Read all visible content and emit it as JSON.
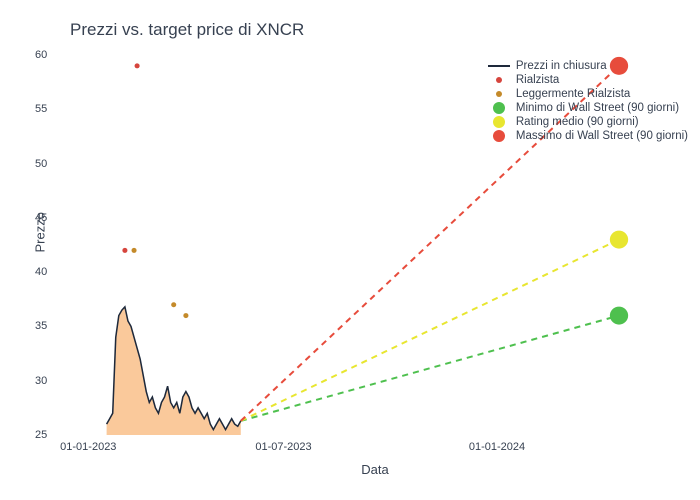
{
  "title": "Prezzi vs. target price di XNCR",
  "xlabel": "Data",
  "ylabel": "Prezzo",
  "background_color": "#ffffff",
  "title_fontsize": 17,
  "label_fontsize": 13,
  "tick_fontsize": 11,
  "text_color": "#374151",
  "ylim": [
    25,
    60
  ],
  "yticks": [
    25,
    30,
    35,
    40,
    45,
    50,
    55,
    60
  ],
  "xticks": [
    {
      "pos": 0.03,
      "label": "01-01-2023"
    },
    {
      "pos": 0.35,
      "label": "01-07-2023"
    },
    {
      "pos": 0.7,
      "label": "01-01-2024"
    }
  ],
  "series": {
    "close": {
      "label": "Prezzi in chiusura",
      "color": "#1e293b",
      "fill": "#f9c08a",
      "line_width": 1.5,
      "x": [
        0.06,
        0.065,
        0.07,
        0.075,
        0.08,
        0.085,
        0.09,
        0.095,
        0.1,
        0.105,
        0.11,
        0.115,
        0.12,
        0.125,
        0.13,
        0.135,
        0.14,
        0.145,
        0.15,
        0.155,
        0.16,
        0.165,
        0.17,
        0.175,
        0.18,
        0.185,
        0.19,
        0.195,
        0.2,
        0.205,
        0.21,
        0.215,
        0.22,
        0.225,
        0.23,
        0.235,
        0.24,
        0.245,
        0.25,
        0.255,
        0.26,
        0.265,
        0.27,
        0.275,
        0.28
      ],
      "y": [
        26.0,
        26.5,
        27.0,
        34.0,
        36.0,
        36.5,
        36.8,
        35.5,
        35.0,
        34.0,
        33.0,
        32.0,
        30.5,
        29.0,
        28.0,
        28.5,
        27.5,
        27.0,
        28.0,
        28.5,
        29.5,
        28.0,
        27.5,
        28.0,
        27.0,
        28.5,
        29.0,
        28.5,
        27.5,
        27.0,
        27.5,
        27.0,
        26.5,
        27.0,
        26.0,
        25.5,
        26.0,
        26.5,
        26.0,
        25.5,
        26.0,
        26.5,
        26.0,
        25.8,
        26.3
      ]
    },
    "bullish": {
      "label": "Rialzista",
      "color": "#d6453d",
      "marker_size": 5,
      "points": [
        {
          "x": 0.09,
          "y": 42
        },
        {
          "x": 0.11,
          "y": 59
        }
      ]
    },
    "slightly_bullish": {
      "label": "Leggermente Rialzista",
      "color": "#c48a2a",
      "marker_size": 5,
      "points": [
        {
          "x": 0.105,
          "y": 42
        },
        {
          "x": 0.17,
          "y": 37
        },
        {
          "x": 0.19,
          "y": 36
        }
      ]
    },
    "target_min": {
      "label": "Minimo di Wall Street (90 giorni)",
      "color": "#4ec04e",
      "dash": "6,5",
      "line_width": 2,
      "marker_size": 9,
      "start": {
        "x": 0.28,
        "y": 26.3
      },
      "end": {
        "x": 0.9,
        "y": 36
      }
    },
    "target_mid": {
      "label": "Rating medio (90 giorni)",
      "color": "#e8e630",
      "dash": "6,5",
      "line_width": 2,
      "marker_size": 9,
      "start": {
        "x": 0.28,
        "y": 26.3
      },
      "end": {
        "x": 0.9,
        "y": 43
      }
    },
    "target_max": {
      "label": "Massimo di Wall Street (90 giorni)",
      "color": "#e74c3c",
      "dash": "6,5",
      "line_width": 2,
      "marker_size": 9,
      "start": {
        "x": 0.28,
        "y": 26.3
      },
      "end": {
        "x": 0.9,
        "y": 59
      }
    }
  },
  "legend_order": [
    "close",
    "bullish",
    "slightly_bullish",
    "target_min",
    "target_mid",
    "target_max"
  ]
}
